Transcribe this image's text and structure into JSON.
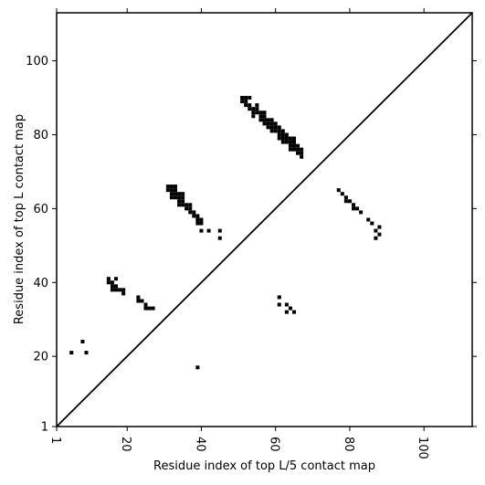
{
  "chart_data": {
    "type": "scatter",
    "xlabel": "Residue index of top L/5 contact map",
    "ylabel": "Residue index of top L contact map",
    "xlim": [
      1,
      113
    ],
    "ylim": [
      1,
      113
    ],
    "x_ticks": [
      1,
      20,
      40,
      60,
      80,
      100
    ],
    "y_ticks": [
      1,
      20,
      40,
      60,
      80,
      100
    ],
    "grid": false,
    "diagonal": true,
    "marker_color": "#000000",
    "series": [
      {
        "points": [
          [
            51,
            89
          ],
          [
            51,
            90
          ],
          [
            52,
            88
          ],
          [
            52,
            89
          ],
          [
            52,
            90
          ],
          [
            53,
            87
          ],
          [
            53,
            88
          ],
          [
            53,
            90
          ],
          [
            54,
            85
          ],
          [
            54,
            86
          ],
          [
            54,
            87
          ],
          [
            55,
            86
          ],
          [
            55,
            87
          ],
          [
            55,
            88
          ],
          [
            56,
            84
          ],
          [
            56,
            85
          ],
          [
            56,
            86
          ],
          [
            57,
            83
          ],
          [
            57,
            84
          ],
          [
            57,
            85
          ],
          [
            57,
            86
          ],
          [
            58,
            82
          ],
          [
            58,
            83
          ],
          [
            58,
            84
          ],
          [
            59,
            81
          ],
          [
            59,
            82
          ],
          [
            59,
            83
          ],
          [
            59,
            84
          ],
          [
            60,
            81
          ],
          [
            60,
            82
          ],
          [
            60,
            83
          ],
          [
            61,
            79
          ],
          [
            61,
            80
          ],
          [
            61,
            81
          ],
          [
            61,
            82
          ],
          [
            62,
            78
          ],
          [
            62,
            79
          ],
          [
            62,
            80
          ],
          [
            62,
            81
          ],
          [
            63,
            78
          ],
          [
            63,
            79
          ],
          [
            63,
            80
          ],
          [
            64,
            76
          ],
          [
            64,
            77
          ],
          [
            64,
            78
          ],
          [
            64,
            79
          ],
          [
            65,
            76
          ],
          [
            65,
            77
          ],
          [
            65,
            78
          ],
          [
            65,
            79
          ],
          [
            66,
            75
          ],
          [
            66,
            76
          ],
          [
            66,
            77
          ],
          [
            67,
            74
          ],
          [
            67,
            75
          ],
          [
            67,
            76
          ],
          [
            31,
            65
          ],
          [
            31,
            66
          ],
          [
            32,
            63
          ],
          [
            32,
            64
          ],
          [
            32,
            65
          ],
          [
            32,
            66
          ],
          [
            33,
            63
          ],
          [
            33,
            64
          ],
          [
            33,
            65
          ],
          [
            33,
            66
          ],
          [
            34,
            61
          ],
          [
            34,
            62
          ],
          [
            34,
            63
          ],
          [
            34,
            64
          ],
          [
            35,
            61
          ],
          [
            35,
            62
          ],
          [
            35,
            63
          ],
          [
            35,
            64
          ],
          [
            36,
            60
          ],
          [
            36,
            61
          ],
          [
            37,
            59
          ],
          [
            37,
            60
          ],
          [
            37,
            61
          ],
          [
            38,
            58
          ],
          [
            38,
            59
          ],
          [
            39,
            56
          ],
          [
            39,
            57
          ],
          [
            39,
            58
          ],
          [
            40,
            56
          ],
          [
            40,
            57
          ],
          [
            40,
            54
          ],
          [
            42,
            54
          ],
          [
            45,
            52
          ],
          [
            45,
            54
          ],
          [
            77,
            65
          ],
          [
            78,
            64
          ],
          [
            79,
            62
          ],
          [
            79,
            63
          ],
          [
            80,
            62
          ],
          [
            81,
            60
          ],
          [
            81,
            61
          ],
          [
            82,
            60
          ],
          [
            83,
            59
          ],
          [
            85,
            57
          ],
          [
            86,
            56
          ],
          [
            87,
            52
          ],
          [
            87,
            54
          ],
          [
            88,
            53
          ],
          [
            88,
            55
          ],
          [
            15,
            40
          ],
          [
            15,
            41
          ],
          [
            16,
            38
          ],
          [
            16,
            39
          ],
          [
            16,
            40
          ],
          [
            17,
            38
          ],
          [
            17,
            39
          ],
          [
            17,
            41
          ],
          [
            18,
            38
          ],
          [
            19,
            37
          ],
          [
            19,
            38
          ],
          [
            23,
            35
          ],
          [
            23,
            36
          ],
          [
            24,
            35
          ],
          [
            25,
            33
          ],
          [
            25,
            34
          ],
          [
            26,
            33
          ],
          [
            27,
            33
          ],
          [
            61,
            34
          ],
          [
            61,
            36
          ],
          [
            63,
            32
          ],
          [
            63,
            34
          ],
          [
            64,
            33
          ],
          [
            65,
            32
          ],
          [
            5,
            21
          ],
          [
            8,
            24
          ],
          [
            9,
            21
          ],
          [
            39,
            17
          ]
        ]
      }
    ]
  }
}
